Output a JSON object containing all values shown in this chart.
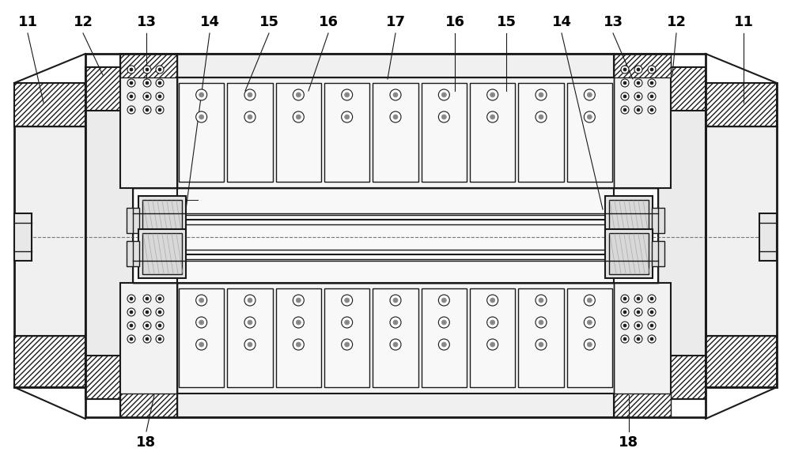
{
  "bg_color": "#ffffff",
  "lc": "#1a1a1a",
  "fig_w": 10.0,
  "fig_h": 5.91,
  "dpi": 100,
  "label_fs": 13,
  "label_color": "#000000"
}
